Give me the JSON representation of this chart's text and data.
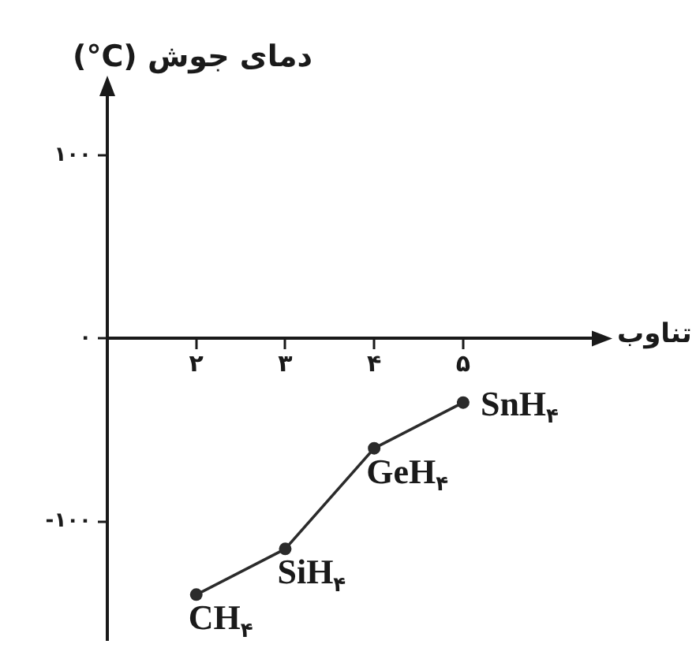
{
  "chart_data": {
    "type": "line",
    "xlabel": "تناوب",
    "ylabel": "دمای جوش (°C)",
    "x": [
      2,
      3,
      4,
      5
    ],
    "values": [
      -140,
      -115,
      -60,
      -35
    ],
    "color": "#2b2b2b",
    "marker": "circle",
    "xlim": [
      1,
      6.5
    ],
    "ylim": [
      -165,
      135
    ],
    "xticks": [
      {
        "value": 2,
        "label": "۲"
      },
      {
        "value": 3,
        "label": "۳"
      },
      {
        "value": 4,
        "label": "۴"
      },
      {
        "value": 5,
        "label": "۵"
      }
    ],
    "yticks": [
      {
        "value": -100,
        "label": "-۱۰۰"
      },
      {
        "value": 0,
        "label": "۰"
      },
      {
        "value": 100,
        "label": "۱۰۰"
      }
    ],
    "annotations": [
      {
        "text": "CH$_{۴}$",
        "x": 2,
        "y": -140
      },
      {
        "text": "SiH$_{۴}$",
        "x": 3,
        "y": -115
      },
      {
        "text": "GeH$_{۴}$",
        "x": 4,
        "y": -60
      },
      {
        "text": "SnH$_{۴}$",
        "x": 5,
        "y": -35
      }
    ]
  }
}
